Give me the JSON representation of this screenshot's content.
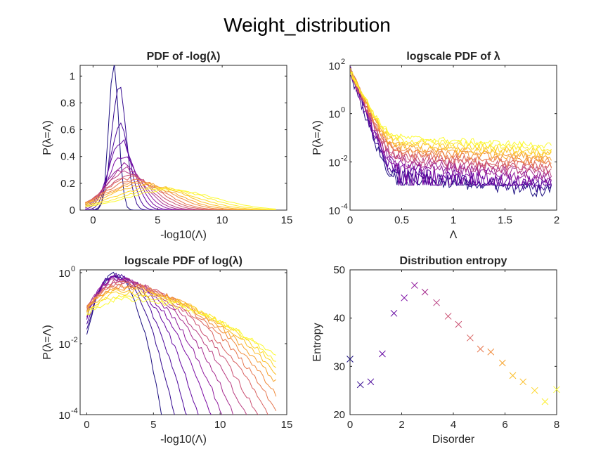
{
  "figure": {
    "title": "Weight_distribution"
  },
  "colors": {
    "palette": [
      "#1a0d7f",
      "#33088f",
      "#4b079b",
      "#6306a1",
      "#7a09a3",
      "#911c9d",
      "#a62d8f",
      "#b93e82",
      "#ca5072",
      "#d96361",
      "#e6774f",
      "#f08c3e",
      "#f7a42e",
      "#fbbd25",
      "#fdd628",
      "#fdee2c",
      "#fbfb31"
    ]
  },
  "chart_data": [
    {
      "id": "pdf-neglog",
      "type": "line",
      "title": "PDF of -log(λ)",
      "xlabel": "-log10(Λ)",
      "ylabel": "P(λ=Λ)",
      "xlim": [
        -1,
        15
      ],
      "ylim": [
        0,
        1.08
      ],
      "xticks": [
        0,
        5,
        10,
        15
      ],
      "yticks": [
        0,
        0.2,
        0.4,
        0.6,
        0.8,
        1
      ],
      "ytick_labels": [
        "0",
        "0.2",
        "0.4",
        "0.6",
        "0.8",
        "1"
      ],
      "grid": false,
      "series_count": 17,
      "peak_positions": [
        1.6,
        2.0,
        2.1,
        2.2,
        2.3,
        2.4,
        2.5,
        2.6,
        2.8,
        3.0,
        3.2,
        3.5,
        3.8,
        4.2,
        4.8,
        5.4,
        6.0
      ],
      "peak_heights": [
        1.06,
        0.91,
        0.62,
        0.52,
        0.4,
        0.34,
        0.31,
        0.28,
        0.26,
        0.24,
        0.22,
        0.21,
        0.2,
        0.19,
        0.17,
        0.16,
        0.15
      ]
    },
    {
      "id": "logpdf-lambda",
      "type": "line",
      "title": "logscale PDF of λ",
      "xlabel": "Λ",
      "ylabel": "P(λ=Λ)",
      "xlim": [
        0,
        2
      ],
      "ylim": [
        0.0001,
        100
      ],
      "yscale": "log",
      "xticks": [
        0,
        0.5,
        1,
        1.5,
        2
      ],
      "yticks": [
        0.0001,
        0.01,
        1,
        100
      ],
      "ytick_labels": [
        [
          "10",
          "-4"
        ],
        [
          "10",
          "-2"
        ],
        [
          "10",
          "0"
        ],
        [
          "10",
          "2"
        ]
      ],
      "grid": false,
      "series_count": 17
    },
    {
      "id": "logpdf-log",
      "type": "line",
      "title": "logscale PDF of log(λ)",
      "xlabel": "-log10(Λ)",
      "ylabel": "P(λ=Λ)",
      "xlim": [
        -0.5,
        15
      ],
      "ylim": [
        0.0001,
        1.2
      ],
      "yscale": "log",
      "xticks": [
        0,
        5,
        10,
        15
      ],
      "yticks": [
        0.0001,
        0.01,
        1
      ],
      "ytick_labels": [
        [
          "10",
          "-4"
        ],
        [
          "10",
          "-2"
        ],
        [
          "10",
          "0"
        ]
      ],
      "grid": false,
      "series_count": 17
    },
    {
      "id": "entropy",
      "type": "scatter",
      "title": "Distribution entropy",
      "xlabel": "Disorder",
      "ylabel": "Entropy",
      "xlim": [
        0,
        8
      ],
      "ylim": [
        20,
        50
      ],
      "xticks": [
        0,
        2,
        4,
        6,
        8
      ],
      "yticks": [
        20,
        30,
        40,
        50
      ],
      "marker": "x",
      "grid": false,
      "x": [
        0,
        0.4,
        0.8,
        1.25,
        1.7,
        2.1,
        2.5,
        2.9,
        3.35,
        3.8,
        4.2,
        4.65,
        5.05,
        5.45,
        5.9,
        6.3,
        6.7,
        7.15,
        7.55,
        8.0
      ],
      "y": [
        31.5,
        26.2,
        26.8,
        32.6,
        41.0,
        44.2,
        46.8,
        45.4,
        43.2,
        40.4,
        38.7,
        35.9,
        33.6,
        33.0,
        30.7,
        28.1,
        26.8,
        25.0,
        22.7,
        25.2
      ]
    }
  ]
}
